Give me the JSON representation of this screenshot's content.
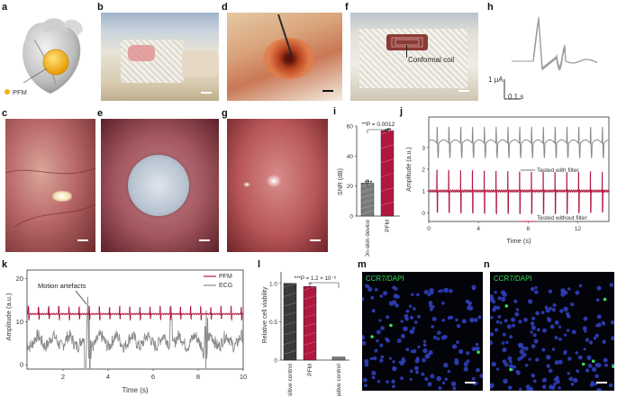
{
  "panels": {
    "a": {
      "letter": "a",
      "label": "PFM"
    },
    "b": {
      "letter": "b"
    },
    "c": {
      "letter": "c"
    },
    "d": {
      "letter": "d"
    },
    "e": {
      "letter": "e"
    },
    "f": {
      "letter": "f",
      "annotation": "Conformal coil"
    },
    "g": {
      "letter": "g"
    },
    "h": {
      "letter": "h",
      "scale_y": "1 μA",
      "scale_x": "0.1 s"
    },
    "i": {
      "letter": "i"
    },
    "j": {
      "letter": "j"
    },
    "k": {
      "letter": "k",
      "annotation": "Motion artefacts"
    },
    "l": {
      "letter": "l"
    },
    "m": {
      "letter": "m",
      "stain": "CCR7/DAPI"
    },
    "n": {
      "letter": "n",
      "stain": "CCR7/DAPI"
    }
  },
  "colors": {
    "pfm": "#b0173f",
    "gray": "#8a8a8a",
    "dark": "#333333",
    "gold": "#f3b312"
  },
  "chart_data": [
    {
      "id": "i",
      "type": "bar",
      "categories": [
        "On-skin device",
        "PFM"
      ],
      "values": [
        22,
        57
      ],
      "errors": [
        2,
        1
      ],
      "ylabel": "SNR (dB)",
      "yticks": [
        "0",
        "20",
        "40",
        "60"
      ],
      "ylim": [
        0,
        60
      ],
      "significance": "**P = 0.0012"
    },
    {
      "id": "j",
      "type": "line",
      "ylabel": "Amplitude (a.u.)",
      "xlabel": "Time (s)",
      "xticks": [
        "0",
        "4",
        "8",
        "12"
      ],
      "yticks": [
        "0",
        "1",
        "2",
        "3"
      ],
      "xlim": [
        0,
        14.5
      ],
      "ylim": [
        -0.4,
        4.4
      ],
      "series": [
        {
          "name": "Tested with filter",
          "baseline": 3.2,
          "spike_amp": 0.75,
          "period": 0.95
        },
        {
          "name": "Tested without filter",
          "baseline": 1.0,
          "spike_amp": 0.9,
          "period": 0.95
        }
      ]
    },
    {
      "id": "k",
      "type": "line",
      "ylabel": "Amplitude (a.u.)",
      "xlabel": "Time (s)",
      "xticks": [
        "2",
        "4",
        "6",
        "8",
        "10"
      ],
      "yticks": [
        "0",
        "10",
        "20"
      ],
      "xlim": [
        0.4,
        10
      ],
      "ylim": [
        -1,
        22
      ],
      "series": [
        {
          "name": "PFM",
          "baseline": 11.8
        },
        {
          "name": "ECG",
          "baseline": 5.5
        }
      ]
    },
    {
      "id": "l",
      "type": "bar",
      "categories": [
        "Positive control",
        "PFM",
        "Negative control"
      ],
      "values": [
        1.0,
        0.96,
        0.04
      ],
      "errors": [
        0.0,
        0.04,
        0.0
      ],
      "ylabel": "Relative cell viability",
      "yticks": [
        "0",
        "0.5",
        "1.0"
      ],
      "ylim": [
        0,
        1.15
      ],
      "significance": "***P = 1.2 × 10⁻⁶"
    }
  ]
}
